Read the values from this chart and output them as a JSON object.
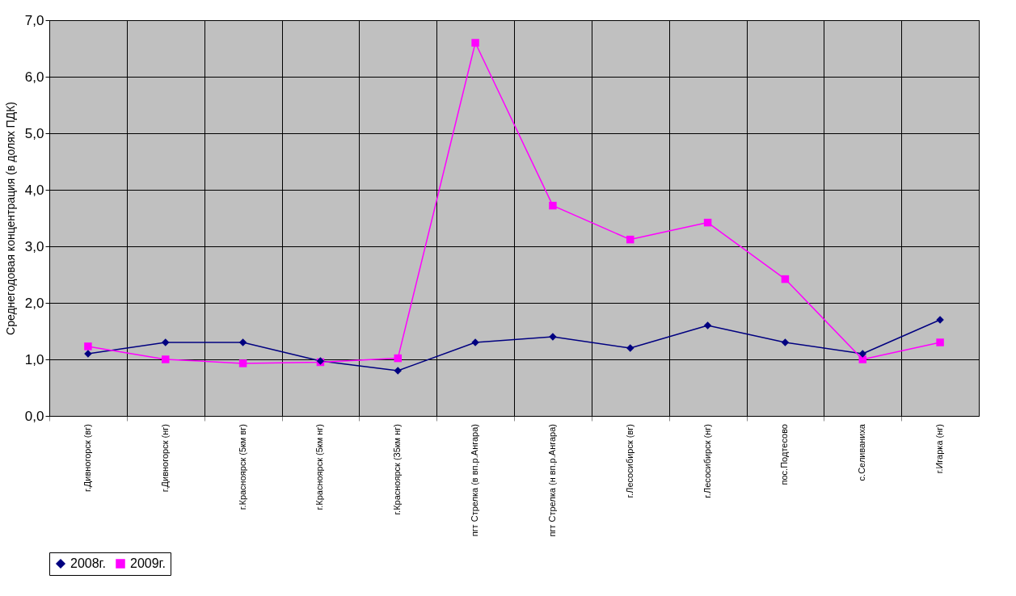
{
  "chart_data": {
    "type": "line",
    "ylabel": "Среднегодовая концентрация (в долях ПДК)",
    "categories": [
      "г.Дивногорск (вг)",
      "г.Дивногорск (нг)",
      "г.Красноярск (5км вг)",
      "г.Красноярск (5км нг)",
      "г.Красноярск (35км нг)",
      "пгт Стрелка (в вп.р.Ангара)",
      "пгт Стрелка (н вп.р.Ангара)",
      "г.Лесосибирск (вг)",
      "г.Лесосибирск (нг)",
      "пос.Подтесово",
      "с.Селиваниха",
      "г.Игарка (нг)"
    ],
    "series": [
      {
        "name": "2008г.",
        "color": "#000080",
        "marker": "diamond",
        "values": [
          1.1,
          1.3,
          1.3,
          0.97,
          0.8,
          1.3,
          1.4,
          1.2,
          1.6,
          1.3,
          1.1,
          1.7
        ]
      },
      {
        "name": "2009г.",
        "color": "#ff00ff",
        "marker": "square",
        "values": [
          1.23,
          1.0,
          0.93,
          0.95,
          1.02,
          6.6,
          3.72,
          3.12,
          3.42,
          2.42,
          1.0,
          1.3
        ]
      }
    ],
    "ylim": [
      0,
      7
    ],
    "yticks": [
      {
        "value": 0,
        "label": "0,0"
      },
      {
        "value": 1,
        "label": "1,0"
      },
      {
        "value": 2,
        "label": "2,0"
      },
      {
        "value": 3,
        "label": "3,0"
      },
      {
        "value": 4,
        "label": "4,0"
      },
      {
        "value": 5,
        "label": "5,0"
      },
      {
        "value": 6,
        "label": "6,0"
      },
      {
        "value": 7,
        "label": "7,0"
      }
    ],
    "grid": true,
    "legend": "bottom"
  }
}
